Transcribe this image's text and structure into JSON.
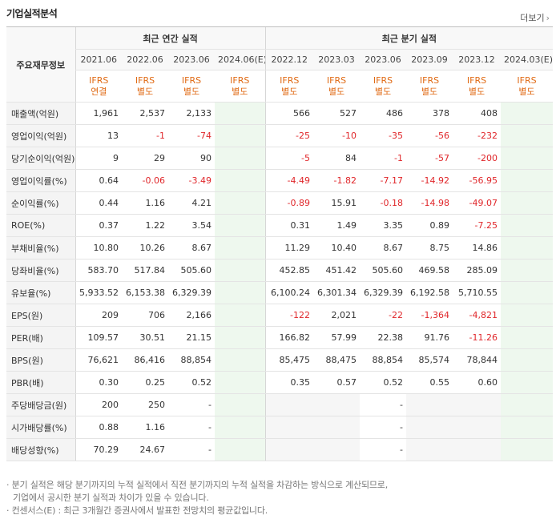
{
  "title": "기업실적분석",
  "more_label": "더보기",
  "header": {
    "corner": "주요재무정보",
    "annual_group": "최근 연간 실적",
    "quarter_group": "최근 분기 실적",
    "annual_periods": [
      "2021.06",
      "2022.06",
      "2023.06",
      "2024.06(E)"
    ],
    "quarter_periods": [
      "2022.12",
      "2023.03",
      "2023.06",
      "2023.09",
      "2023.12",
      "2024.03(E)"
    ],
    "annual_basis": [
      [
        "IFRS",
        "연결"
      ],
      [
        "IFRS",
        "별도"
      ],
      [
        "IFRS",
        "별도"
      ],
      [
        "IFRS",
        "별도"
      ]
    ],
    "quarter_basis": [
      [
        "IFRS",
        "별도"
      ],
      [
        "IFRS",
        "별도"
      ],
      [
        "IFRS",
        "별도"
      ],
      [
        "IFRS",
        "별도"
      ],
      [
        "IFRS",
        "별도"
      ],
      [
        "IFRS",
        "별도"
      ]
    ]
  },
  "rows": [
    {
      "label": "매출액(억원)",
      "annual": [
        "1,961",
        "2,537",
        "2,133",
        ""
      ],
      "quarter": [
        "566",
        "527",
        "486",
        "378",
        "408",
        ""
      ]
    },
    {
      "label": "영업이익(억원)",
      "annual": [
        "13",
        "-1",
        "-74",
        ""
      ],
      "quarter": [
        "-25",
        "-10",
        "-35",
        "-56",
        "-232",
        ""
      ]
    },
    {
      "label": "당기순이익(억원)",
      "annual": [
        "9",
        "29",
        "90",
        ""
      ],
      "quarter": [
        "-5",
        "84",
        "-1",
        "-57",
        "-200",
        ""
      ]
    },
    {
      "label": "영업이익률(%)",
      "annual": [
        "0.64",
        "-0.06",
        "-3.49",
        ""
      ],
      "quarter": [
        "-4.49",
        "-1.82",
        "-7.17",
        "-14.92",
        "-56.95",
        ""
      ]
    },
    {
      "label": "순이익률(%)",
      "annual": [
        "0.44",
        "1.16",
        "4.21",
        ""
      ],
      "quarter": [
        "-0.89",
        "15.91",
        "-0.18",
        "-14.98",
        "-49.07",
        ""
      ]
    },
    {
      "label": "ROE(%)",
      "annual": [
        "0.37",
        "1.22",
        "3.54",
        ""
      ],
      "quarter": [
        "0.31",
        "1.49",
        "3.35",
        "0.89",
        "-7.25",
        ""
      ]
    },
    {
      "label": "부채비율(%)",
      "annual": [
        "10.80",
        "10.26",
        "8.67",
        ""
      ],
      "quarter": [
        "11.29",
        "10.40",
        "8.67",
        "8.75",
        "14.86",
        ""
      ]
    },
    {
      "label": "당좌비율(%)",
      "annual": [
        "583.70",
        "517.84",
        "505.60",
        ""
      ],
      "quarter": [
        "452.85",
        "451.42",
        "505.60",
        "469.58",
        "285.09",
        ""
      ]
    },
    {
      "label": "유보율(%)",
      "annual": [
        "5,933.52",
        "6,153.38",
        "6,329.39",
        ""
      ],
      "quarter": [
        "6,100.24",
        "6,301.34",
        "6,329.39",
        "6,192.58",
        "5,710.55",
        ""
      ]
    },
    {
      "label": "EPS(원)",
      "annual": [
        "209",
        "706",
        "2,166",
        ""
      ],
      "quarter": [
        "-122",
        "2,021",
        "-22",
        "-1,364",
        "-4,821",
        ""
      ]
    },
    {
      "label": "PER(배)",
      "annual": [
        "109.57",
        "30.51",
        "21.15",
        ""
      ],
      "quarter": [
        "166.82",
        "57.99",
        "22.38",
        "91.76",
        "-11.26",
        ""
      ]
    },
    {
      "label": "BPS(원)",
      "annual": [
        "76,621",
        "86,416",
        "88,854",
        ""
      ],
      "quarter": [
        "85,475",
        "88,475",
        "88,854",
        "85,574",
        "78,844",
        ""
      ]
    },
    {
      "label": "PBR(배)",
      "annual": [
        "0.30",
        "0.25",
        "0.52",
        ""
      ],
      "quarter": [
        "0.35",
        "0.57",
        "0.52",
        "0.55",
        "0.60",
        ""
      ]
    },
    {
      "label": "주당배당금(원)",
      "annual": [
        "200",
        "250",
        "-",
        ""
      ],
      "quarter": [
        "",
        "",
        "-",
        "",
        "",
        ""
      ]
    },
    {
      "label": "시가배당률(%)",
      "annual": [
        "0.88",
        "1.16",
        "-",
        ""
      ],
      "quarter": [
        "",
        "",
        "-",
        "",
        "",
        ""
      ]
    },
    {
      "label": "배당성향(%)",
      "annual": [
        "70.29",
        "24.67",
        "-",
        ""
      ],
      "quarter": [
        "",
        "",
        "-",
        "",
        "",
        ""
      ]
    }
  ],
  "footnotes": [
    "· 분기 실적은 해당 분기까지의 누적 실적에서 직전 분기까지의 누적 실적을 차감하는 방식으로 계산되므로,",
    "  기업에서 공시한 분기 실적과 차이가 있을 수 있습니다.",
    "· 컨센서스(E) : 최근 3개월간 증권사에서 발표한 전망치의 평균값입니다."
  ],
  "colors": {
    "negative": "#e0262a",
    "ifrs": "#e06a14",
    "estimate_bg": "#eef8ee"
  }
}
